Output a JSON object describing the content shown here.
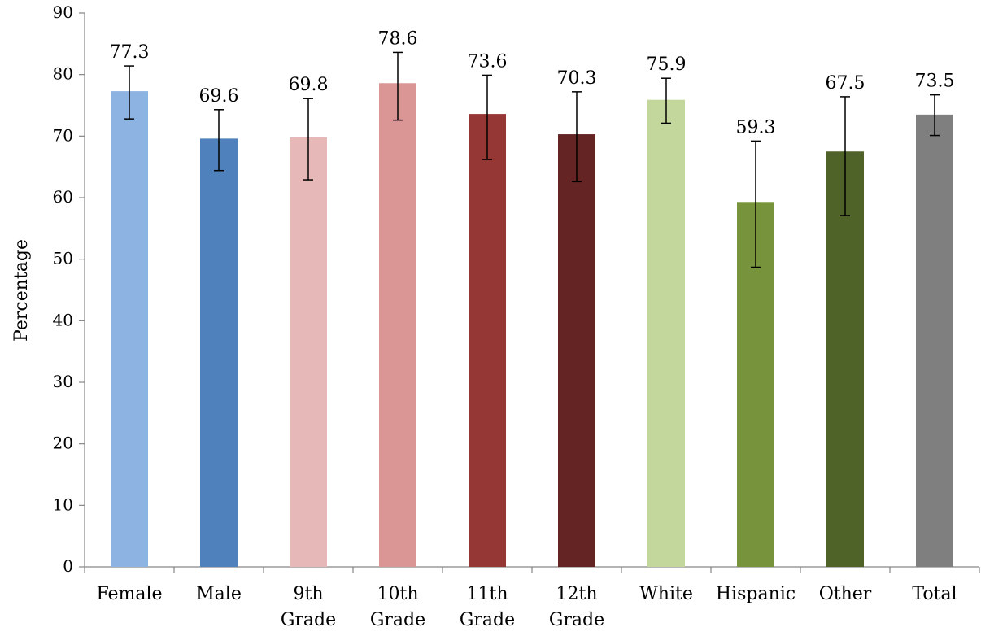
{
  "chart_data": {
    "type": "bar",
    "title": "",
    "xlabel": "",
    "ylabel": "Percentage",
    "ylim": [
      0,
      90
    ],
    "yticks": [
      0,
      10,
      20,
      30,
      40,
      50,
      60,
      70,
      80,
      90
    ],
    "grid": false,
    "legend": "none",
    "categories": [
      {
        "label": [
          "Female"
        ],
        "value": 77.3,
        "value_label": "77.3",
        "err_low": 72.8,
        "err_high": 81.4,
        "color": "#8DB3E2"
      },
      {
        "label": [
          "Male"
        ],
        "value": 69.6,
        "value_label": "69.6",
        "err_low": 64.4,
        "err_high": 74.3,
        "color": "#4F81BD"
      },
      {
        "label": [
          "9th",
          "Grade"
        ],
        "value": 69.8,
        "value_label": "69.8",
        "err_low": 62.9,
        "err_high": 76.1,
        "color": "#E6B9B8"
      },
      {
        "label": [
          "10th",
          "Grade"
        ],
        "value": 78.6,
        "value_label": "78.6",
        "err_low": 72.6,
        "err_high": 83.6,
        "color": "#D99694"
      },
      {
        "label": [
          "11th",
          "Grade"
        ],
        "value": 73.6,
        "value_label": "73.6",
        "err_low": 66.2,
        "err_high": 79.9,
        "color": "#953735"
      },
      {
        "label": [
          "12th",
          "Grade"
        ],
        "value": 70.3,
        "value_label": "70.3",
        "err_low": 62.6,
        "err_high": 77.2,
        "color": "#632423"
      },
      {
        "label": [
          "White"
        ],
        "value": 75.9,
        "value_label": "75.9",
        "err_low": 72.1,
        "err_high": 79.4,
        "color": "#C3D69B"
      },
      {
        "label": [
          "Hispanic"
        ],
        "value": 59.3,
        "value_label": "59.3",
        "err_low": 48.7,
        "err_high": 69.2,
        "color": "#77933C"
      },
      {
        "label": [
          "Other"
        ],
        "value": 67.5,
        "value_label": "67.5",
        "err_low": 57.1,
        "err_high": 76.4,
        "color": "#4F6228"
      },
      {
        "label": [
          "Total"
        ],
        "value": 73.5,
        "value_label": "73.5",
        "err_low": 70.1,
        "err_high": 76.7,
        "color": "#7F7F7F"
      }
    ]
  }
}
